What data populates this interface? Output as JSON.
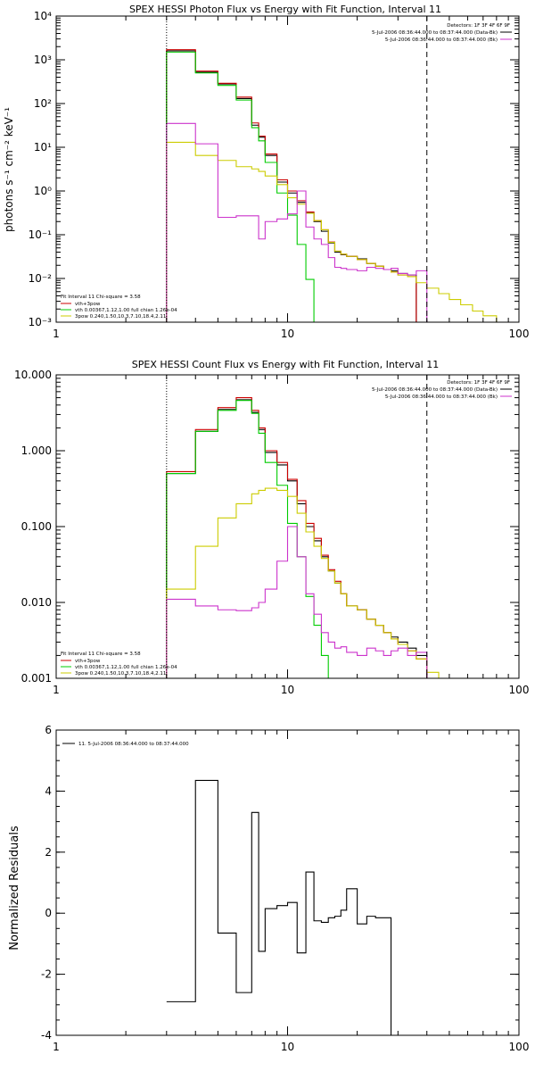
{
  "chart_data": [
    {
      "type": "line",
      "title": "SPEX HESSI Photon Flux vs Energy with Fit Function, Interval 11",
      "ylabel": "photons s⁻¹ cm⁻² keV⁻¹",
      "xlabel": "",
      "xscale": "log",
      "yscale": "log",
      "xlim": [
        1,
        100
      ],
      "ylim": [
        0.001,
        10000
      ],
      "xticks": [
        1,
        10,
        100
      ],
      "xtick_labels": [
        "1",
        "10",
        "100"
      ],
      "yticks": [
        0.001,
        0.01,
        0.1,
        1,
        10,
        100,
        1000,
        10000
      ],
      "ytick_labels": [
        "10⁻³",
        "10⁻²",
        "10⁻¹",
        "10⁰",
        "10¹",
        "10²",
        "10³",
        "10⁴"
      ],
      "vlines": [
        {
          "x": 3,
          "style": "dotted"
        },
        {
          "x": 40,
          "style": "dashed"
        }
      ],
      "legend_topright": [
        "Detectors: 1F 3F 4F 6F 9F",
        "5-Jul-2006 08:36:44.000 to 08:37:44.000 (Data-Bk)",
        "5-Jul-2006 08:36:44.000 to 08:37:44.000 (Bk)"
      ],
      "legend_topright_colors": [
        "",
        "#000000",
        "#cc33cc"
      ],
      "legend_bottomleft": [
        "Fit Interval 11   Chi-square = 3.58",
        "vth+3pow",
        "vth 0.00367,1.12,1.00  full chian 1.26e-04",
        "3pow 0.240,1.50,10.3,7.10,18.4,2.11"
      ],
      "legend_bottomleft_colors": [
        "",
        "#cc0000",
        "#00cc00",
        "#cccc00"
      ],
      "edges": [
        3,
        4,
        5,
        6,
        7,
        7.5,
        8,
        9,
        10,
        11,
        12,
        13,
        14,
        15,
        16,
        17,
        18,
        20,
        22,
        24,
        26,
        28,
        30,
        33,
        36,
        40,
        45,
        50,
        56,
        63,
        70,
        80,
        90,
        100
      ],
      "series": [
        {
          "name": "Data-Bk",
          "color": "#000000",
          "values": [
            1600,
            520,
            280,
            130,
            32,
            17,
            6.5,
            1.6,
            0.9,
            0.55,
            0.32,
            0.2,
            0.12,
            0.065,
            0.04,
            0.035,
            0.032,
            0.028,
            0.022,
            0.019,
            0.016,
            0.015,
            0.013,
            0.012
          ]
        },
        {
          "name": "vth+3pow",
          "color": "#cc0000",
          "values": [
            1700,
            550,
            290,
            140,
            36,
            18,
            7,
            1.8,
            1,
            0.6,
            0.33,
            0.21,
            0.13,
            0.068,
            0.042,
            0.036,
            0.032,
            0.027,
            0.022,
            0.019,
            0.016,
            0.014,
            0.012,
            0.011
          ]
        },
        {
          "name": "vth",
          "color": "#00cc00",
          "values": [
            1500,
            500,
            260,
            120,
            28,
            14,
            4.5,
            0.9,
            0.28,
            0.06,
            0.0095,
            0.001
          ]
        },
        {
          "name": "3pow",
          "color": "#cccc00",
          "values": [
            13,
            6.5,
            5,
            3.6,
            3.2,
            2.8,
            2.2,
            1.4,
            0.7,
            0.5,
            0.31,
            0.21,
            0.13,
            0.067,
            0.042,
            0.036,
            0.032,
            0.027,
            0.022,
            0.019,
            0.016,
            0.014,
            0.012,
            0.011,
            0.008,
            0.006,
            0.0045,
            0.0033,
            0.0025,
            0.0018,
            0.0014,
            0.001,
            0.0008
          ]
        },
        {
          "name": "Bk",
          "color": "#cc33cc",
          "values": [
            35,
            12,
            0.25,
            0.27,
            0.27,
            0.08,
            0.2,
            0.23,
            0.3,
            1,
            0.15,
            0.08,
            0.06,
            0.03,
            0.018,
            0.017,
            0.016,
            0.015,
            0.018,
            0.017,
            0.016,
            0.017,
            0.013,
            0.012,
            0.015,
            0.001
          ]
        }
      ]
    },
    {
      "type": "line",
      "title": "SPEX HESSI Count Flux vs Energy with Fit Function, Interval 11",
      "ylabel": "",
      "xlabel": "",
      "xscale": "log",
      "yscale": "log",
      "xlim": [
        1,
        100
      ],
      "ylim": [
        0.001,
        10
      ],
      "xticks": [
        1,
        10,
        100
      ],
      "xtick_labels": [
        "1",
        "10",
        "100"
      ],
      "yticks": [
        0.001,
        0.01,
        0.1,
        1,
        10
      ],
      "ytick_labels": [
        "0.001",
        "0.010",
        "0.100",
        "1.000",
        "10.000"
      ],
      "vlines": [
        {
          "x": 3,
          "style": "dotted"
        },
        {
          "x": 40,
          "style": "dashed"
        }
      ],
      "legend_topright": [
        "Detectors: 1F 3F 4F 6F 9F",
        "5-Jul-2006 08:36:44.000 to 08:37:44.000 (Data-Bk)",
        "5-Jul-2006 08:36:44.000 to 08:37:44.000 (Bk)"
      ],
      "legend_topright_colors": [
        "",
        "#000000",
        "#cc33cc"
      ],
      "legend_bottomleft": [
        "Fit Interval 11   Chi-square = 3.58",
        "vth+3pow",
        "vth 0.00367,1.12,1.00  full chian 1.26e-04",
        "3pow 0.240,1.50,10.3,7.10,18.4,2.11"
      ],
      "legend_bottomleft_colors": [
        "",
        "#cc0000",
        "#00cc00",
        "#cccc00"
      ],
      "edges": [
        3,
        4,
        5,
        6,
        7,
        7.5,
        8,
        9,
        10,
        11,
        12,
        13,
        14,
        15,
        16,
        17,
        18,
        20,
        22,
        24,
        26,
        28,
        30,
        33,
        36,
        40,
        45
      ],
      "series": [
        {
          "name": "Data-Bk",
          "color": "#000000",
          "values": [
            0.5,
            1.8,
            3.5,
            4.7,
            3.2,
            1.9,
            0.95,
            0.65,
            0.4,
            0.2,
            0.1,
            0.065,
            0.04,
            0.026,
            0.018,
            0.013,
            0.009,
            0.008,
            0.006,
            0.005,
            0.004,
            0.0035,
            0.003,
            0.0025,
            0.002
          ]
        },
        {
          "name": "vth+3pow",
          "color": "#cc0000",
          "values": [
            0.53,
            1.9,
            3.7,
            5,
            3.4,
            2,
            1,
            0.7,
            0.42,
            0.22,
            0.11,
            0.07,
            0.042,
            0.027,
            0.019,
            0.013,
            0.009,
            0.008,
            0.006,
            0.005,
            0.004,
            0.0033,
            0.0028,
            0.0023,
            0.0018,
            0.001
          ]
        },
        {
          "name": "vth",
          "color": "#00cc00",
          "values": [
            0.5,
            1.8,
            3.4,
            4.6,
            3.1,
            1.7,
            0.7,
            0.35,
            0.11,
            0.04,
            0.012,
            0.005,
            0.002,
            0.001
          ]
        },
        {
          "name": "3pow",
          "color": "#cccc00",
          "values": [
            0.015,
            0.055,
            0.13,
            0.2,
            0.27,
            0.3,
            0.32,
            0.3,
            0.25,
            0.15,
            0.085,
            0.055,
            0.038,
            0.026,
            0.018,
            0.013,
            0.009,
            0.008,
            0.006,
            0.005,
            0.004,
            0.0033,
            0.0028,
            0.0023,
            0.0018,
            0.0012
          ]
        },
        {
          "name": "Bk",
          "color": "#cc33cc",
          "values": [
            0.011,
            0.009,
            0.008,
            0.0078,
            0.0085,
            0.01,
            0.015,
            0.035,
            0.1,
            0.04,
            0.013,
            0.007,
            0.004,
            0.003,
            0.0025,
            0.0026,
            0.0022,
            0.002,
            0.0025,
            0.0023,
            0.002,
            0.0023,
            0.0025,
            0.002,
            0.0022,
            0.001
          ]
        }
      ]
    },
    {
      "type": "line",
      "title": "",
      "ylabel": "Normalized Residuals",
      "xlabel": "",
      "xscale": "log",
      "yscale": "linear",
      "xlim": [
        1,
        100
      ],
      "ylim": [
        -4,
        6
      ],
      "xticks": [
        1,
        10,
        100
      ],
      "xtick_labels": [
        "1",
        "10",
        "100"
      ],
      "yticks": [
        -4,
        -2,
        0,
        2,
        4,
        6
      ],
      "ytick_labels": [
        "-4",
        "-2",
        "0",
        "2",
        "4",
        "6"
      ],
      "legend_topleft": [
        "11.  5-Jul-2006 08:36:44.000 to 08:37:44.000"
      ],
      "edges": [
        3,
        4,
        5,
        6,
        7,
        7.5,
        8,
        9,
        10,
        11,
        12,
        13,
        14,
        15,
        16,
        17,
        18,
        20,
        22,
        24,
        26,
        28,
        30,
        33,
        36,
        40
      ],
      "series": [
        {
          "name": "11.  5-Jul-2006 08:36:44.000 to 08:37:44.000",
          "color": "#000000",
          "values": [
            -2.9,
            4.35,
            -0.65,
            -2.6,
            3.3,
            -1.25,
            0.15,
            0.25,
            0.35,
            -1.3,
            1.35,
            -0.25,
            -0.3,
            -0.15,
            -0.1,
            0.1,
            0.8,
            -0.35,
            -0.1,
            -0.15,
            -0.15
          ]
        }
      ]
    }
  ]
}
